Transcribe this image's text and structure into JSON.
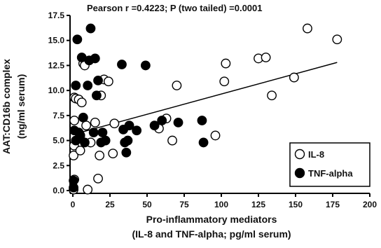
{
  "chart_data": {
    "type": "scatter",
    "title": "Pearson r =0.4223; P (two tailed) =0.0001",
    "xlabel_line1": "Pro-inflammatory mediators",
    "xlabel_line2": "(IL-8 and TNF-alpha; pg/ml serum)",
    "ylabel_line1": "AAT:CD16b complex",
    "ylabel_line2": "(ng/ml serum)",
    "xlim": [
      0,
      200
    ],
    "ylim": [
      0,
      17.5
    ],
    "x_ticks": [
      0,
      25,
      50,
      75,
      100,
      125,
      150,
      175,
      200
    ],
    "y_ticks": [
      0.0,
      2.5,
      5.0,
      7.5,
      10.0,
      12.5,
      15.0,
      17.5
    ],
    "legend_position": "bottom-right",
    "grid": false,
    "regression_line": {
      "x": [
        0,
        178
      ],
      "y": [
        5.6,
        12.8
      ]
    },
    "series": [
      {
        "name": "IL-8",
        "marker": "open-circle",
        "points": [
          [
            0.5,
            0.1
          ],
          [
            1,
            1.1
          ],
          [
            0.5,
            3.5
          ],
          [
            0.8,
            4.5
          ],
          [
            1,
            7.0
          ],
          [
            1,
            9.3
          ],
          [
            2,
            9.2
          ],
          [
            4,
            9.1
          ],
          [
            5,
            4.0
          ],
          [
            5,
            5.5
          ],
          [
            6,
            8.8
          ],
          [
            7,
            12.7
          ],
          [
            8,
            12.5
          ],
          [
            9,
            6.5
          ],
          [
            10,
            0.1
          ],
          [
            12,
            4.8
          ],
          [
            15,
            6.8
          ],
          [
            17,
            1.2
          ],
          [
            18,
            3.5
          ],
          [
            19,
            9.5
          ],
          [
            21,
            11.1
          ],
          [
            24,
            10.9
          ],
          [
            27,
            3.7
          ],
          [
            28,
            6.7
          ],
          [
            58,
            6.2
          ],
          [
            63,
            7.2
          ],
          [
            67,
            5.0
          ],
          [
            70,
            10.5
          ],
          [
            96,
            5.5
          ],
          [
            102,
            10.9
          ],
          [
            103,
            12.7
          ],
          [
            125,
            13.2
          ],
          [
            130,
            13.3
          ],
          [
            134,
            9.5
          ],
          [
            149,
            11.3
          ],
          [
            158,
            16.2
          ],
          [
            178,
            15.1
          ]
        ]
      },
      {
        "name": "TNF-alpha",
        "marker": "filled-circle",
        "points": [
          [
            0.5,
            0.3
          ],
          [
            0.5,
            1.0
          ],
          [
            1,
            6.0
          ],
          [
            2,
            5.0
          ],
          [
            2,
            10.5
          ],
          [
            3,
            15.1
          ],
          [
            4,
            5.8
          ],
          [
            5,
            5.5
          ],
          [
            6,
            13.3
          ],
          [
            7,
            7.3
          ],
          [
            8,
            4.8
          ],
          [
            10,
            10.5
          ],
          [
            11,
            13.0
          ],
          [
            12,
            16.2
          ],
          [
            14,
            5.8
          ],
          [
            15,
            13.2
          ],
          [
            16,
            9.5
          ],
          [
            17,
            11.0
          ],
          [
            19,
            4.8
          ],
          [
            20,
            5.8
          ],
          [
            22,
            5.0
          ],
          [
            33,
            12.6
          ],
          [
            34,
            6.1
          ],
          [
            35,
            4.8
          ],
          [
            36,
            3.8
          ],
          [
            37,
            5.0
          ],
          [
            38,
            6.5
          ],
          [
            43,
            6.0
          ],
          [
            49,
            12.5
          ],
          [
            55,
            6.5
          ],
          [
            60,
            7.0
          ],
          [
            71,
            6.8
          ],
          [
            87,
            7.0
          ],
          [
            88,
            4.8
          ]
        ]
      }
    ]
  }
}
